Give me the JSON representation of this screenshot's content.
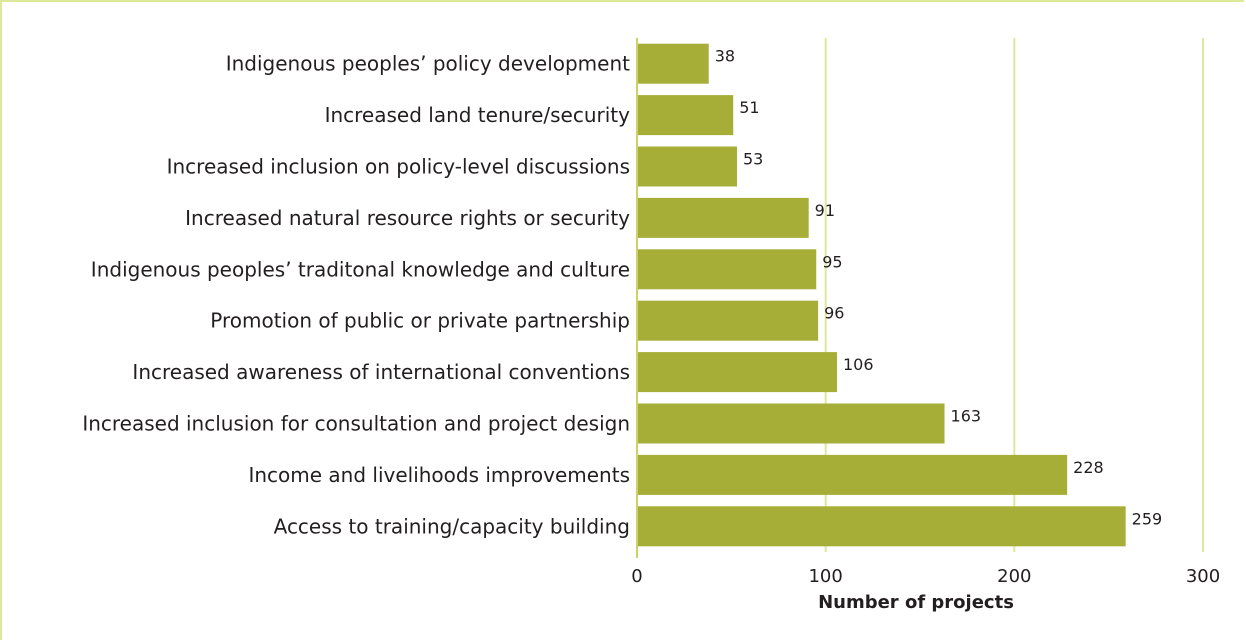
{
  "colors": {
    "bar": "#a7ae38",
    "grid": "#dde89a",
    "axis": "#c8d46a",
    "frame": "#dde89a",
    "text": "#231f20"
  },
  "chart_data": {
    "type": "bar",
    "orientation": "horizontal",
    "categories": [
      "Indigenous peoples’ policy development",
      "Increased land tenure/security",
      "Increased inclusion on policy-level discussions",
      "Increased natural resource rights or security",
      "Indigenous peoples’ traditonal knowledge and culture",
      "Promotion of public or private partnership",
      "Increased awareness of international conventions",
      "Increased inclusion for consultation and project design",
      "Income and livelihoods improvements",
      "Access to training/capacity building"
    ],
    "values": [
      38,
      51,
      53,
      91,
      95,
      96,
      106,
      163,
      228,
      259
    ],
    "data_labels": [
      "38",
      "51",
      "53",
      "91",
      "95",
      "96",
      "106",
      "163",
      "228",
      "259"
    ],
    "xlabel": "Number of projects",
    "ylabel": "",
    "xlim": [
      0,
      300
    ],
    "xticks": [
      0,
      100,
      200,
      300
    ],
    "xtick_labels": [
      "0",
      "100",
      "200",
      "300"
    ],
    "grid": true,
    "legend": "none"
  }
}
